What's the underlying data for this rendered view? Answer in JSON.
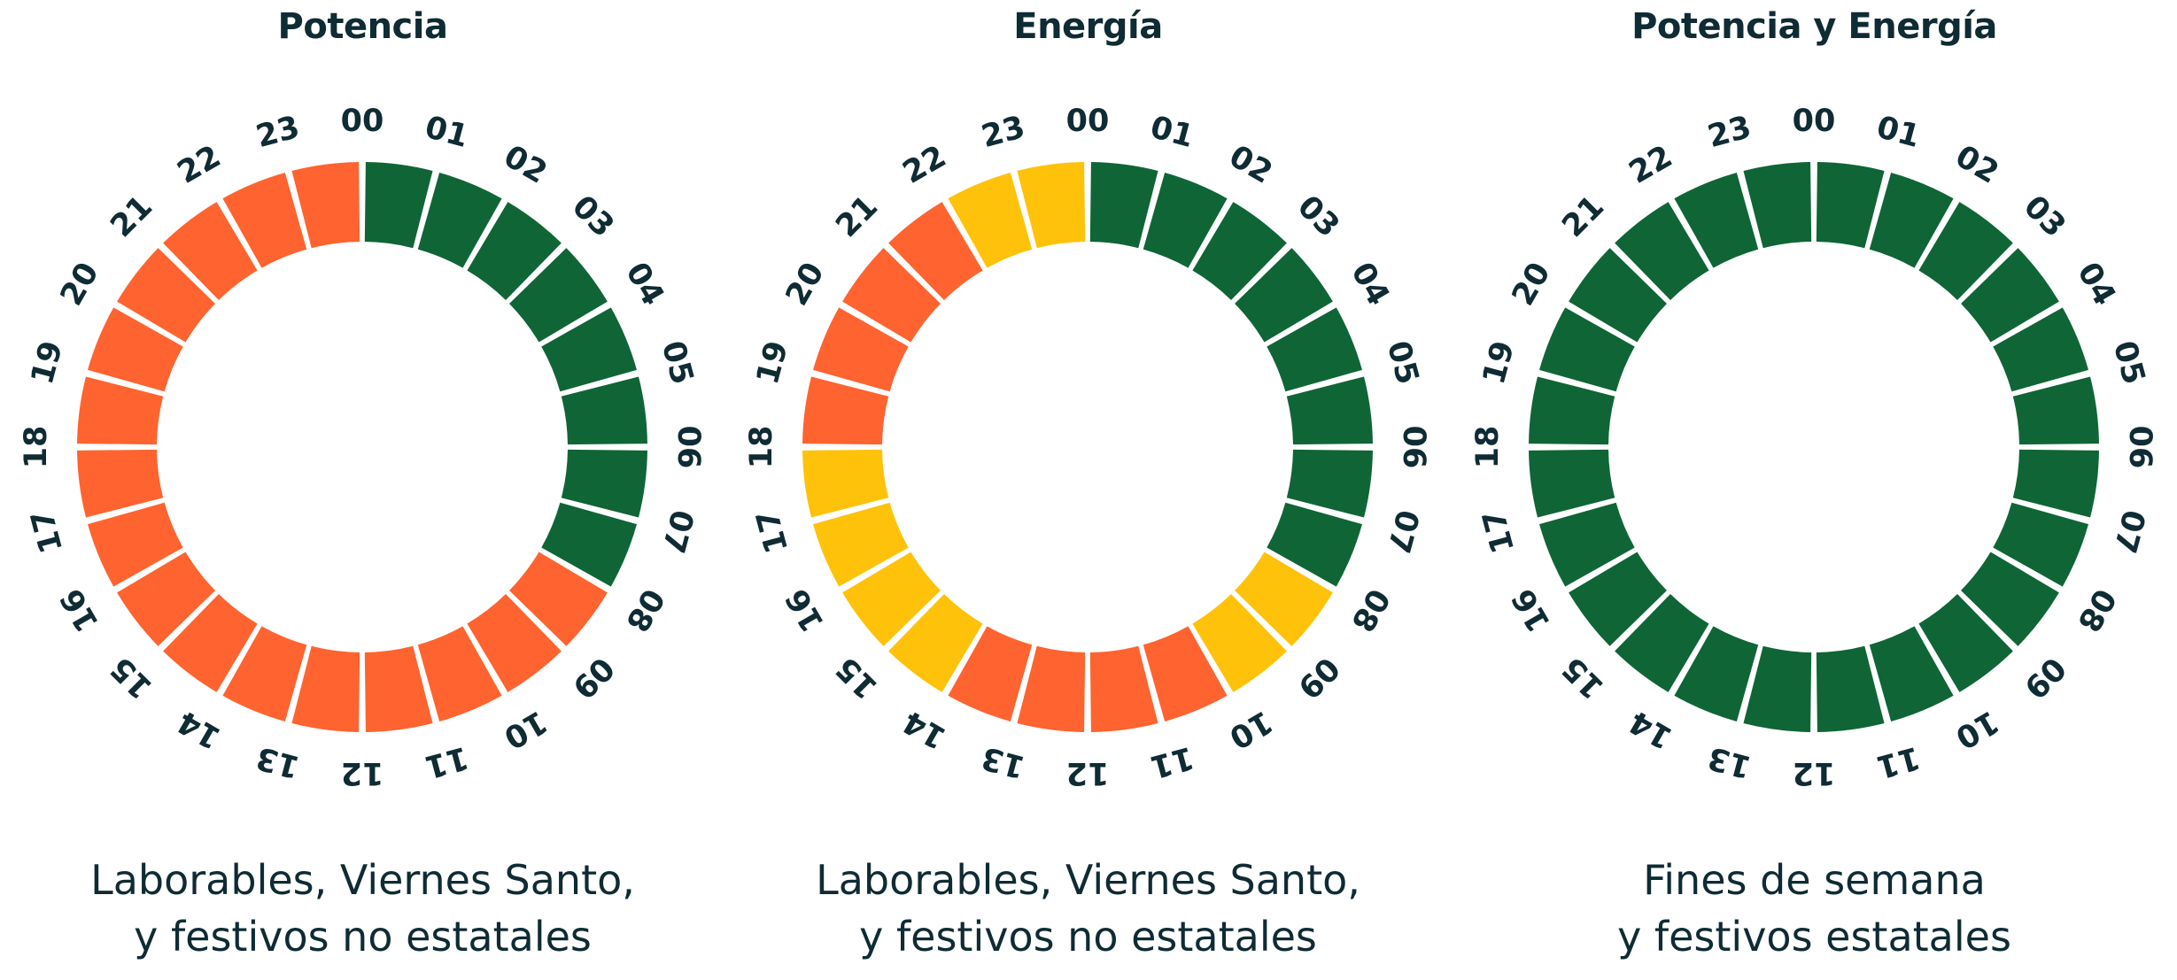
{
  "colors": {
    "P1": "#ff632f",
    "P2": "#ffc20a",
    "P3": "#0f6536"
  },
  "hours": [
    "00",
    "01",
    "02",
    "03",
    "04",
    "05",
    "06",
    "07",
    "08",
    "09",
    "10",
    "11",
    "12",
    "13",
    "14",
    "15",
    "16",
    "17",
    "18",
    "19",
    "20",
    "21",
    "22",
    "23"
  ],
  "panels": [
    {
      "title": "Potencia",
      "caption_lines": [
        "Laborables, Viernes Santo,",
        "y festivos no estatales"
      ],
      "periods": [
        "P3",
        "P3",
        "P3",
        "P3",
        "P3",
        "P3",
        "P3",
        "P3",
        "P1",
        "P1",
        "P1",
        "P1",
        "P1",
        "P1",
        "P1",
        "P1",
        "P1",
        "P1",
        "P1",
        "P1",
        "P1",
        "P1",
        "P1",
        "P1"
      ]
    },
    {
      "title": "Energía",
      "caption_lines": [
        "Laborables, Viernes Santo,",
        "y festivos no estatales"
      ],
      "periods": [
        "P3",
        "P3",
        "P3",
        "P3",
        "P3",
        "P3",
        "P3",
        "P3",
        "P2",
        "P2",
        "P1",
        "P1",
        "P1",
        "P1",
        "P2",
        "P2",
        "P2",
        "P2",
        "P1",
        "P1",
        "P1",
        "P1",
        "P2",
        "P2"
      ]
    },
    {
      "title": "Potencia y Energía",
      "caption_lines": [
        "Fines de semana",
        "y festivos estatales"
      ],
      "periods": [
        "P3",
        "P3",
        "P3",
        "P3",
        "P3",
        "P3",
        "P3",
        "P3",
        "P3",
        "P3",
        "P3",
        "P3",
        "P3",
        "P3",
        "P3",
        "P3",
        "P3",
        "P3",
        "P3",
        "P3",
        "P3",
        "P3",
        "P3",
        "P3"
      ]
    }
  ]
}
